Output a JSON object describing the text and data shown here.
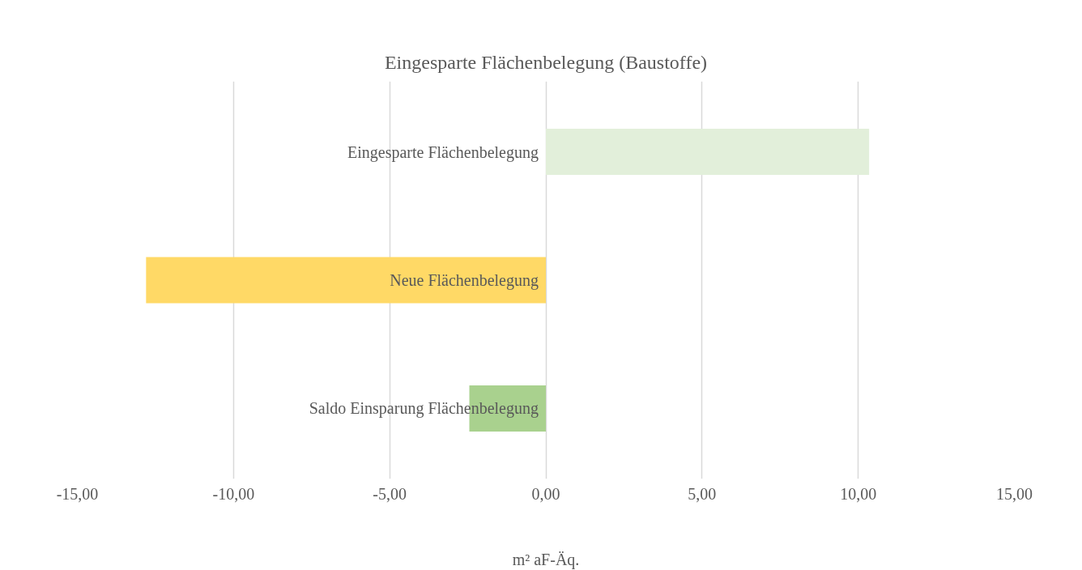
{
  "chart_data": {
    "type": "bar",
    "orientation": "horizontal",
    "title": "Eingesparte Flächenbelegung (Baustoffe)",
    "xlabel": "m² aF-Äq.",
    "categories": [
      "Eingesparte Flächenbelegung",
      "Neue Flächenbelegung",
      "Saldo Einsparung Flächenbelegung"
    ],
    "values": [
      10.35,
      -12.8,
      -2.45
    ],
    "colors": [
      "#e2efda",
      "#ffd966",
      "#a9d18e"
    ],
    "xlim": [
      -15,
      15
    ],
    "xticks": [
      {
        "value": -15,
        "label": "-15,00"
      },
      {
        "value": -10,
        "label": "-10,00"
      },
      {
        "value": -5,
        "label": "-5,00"
      },
      {
        "value": 0,
        "label": "0,00"
      },
      {
        "value": 5,
        "label": "5,00"
      },
      {
        "value": 10,
        "label": "10,00"
      },
      {
        "value": 15,
        "label": "15,00"
      }
    ],
    "grid": "x"
  }
}
